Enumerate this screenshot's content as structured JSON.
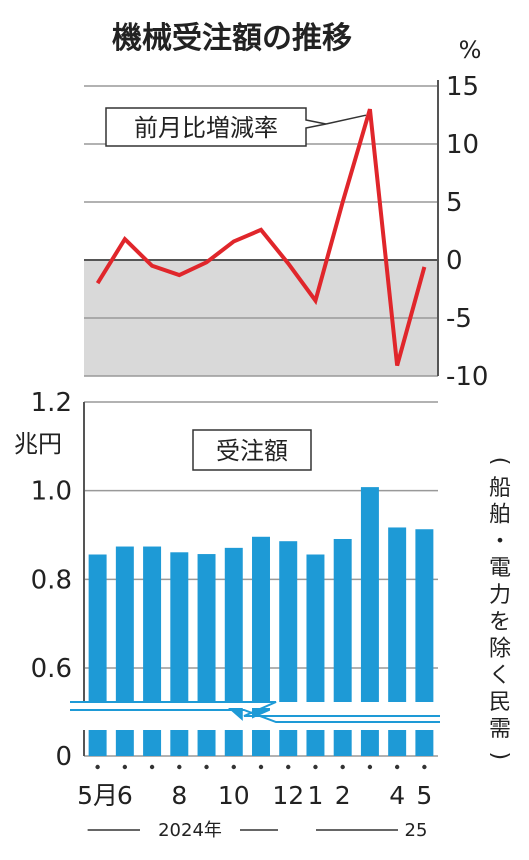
{
  "title": "機械受注額の推移",
  "chart_data": [
    {
      "type": "line",
      "name": "前月比増減率",
      "unit": "%",
      "y_ticks": [
        "15",
        "10",
        "5",
        "0",
        "-5",
        "-10"
      ],
      "ylim": [
        -10,
        15
      ],
      "x": [
        "2024-05",
        "2024-06",
        "2024-07",
        "2024-08",
        "2024-09",
        "2024-10",
        "2024-11",
        "2024-12",
        "2025-01",
        "2025-02",
        "2025-03",
        "2025-04",
        "2025-05"
      ],
      "values": [
        -2.0,
        1.8,
        -0.5,
        -1.3,
        -0.2,
        1.6,
        2.6,
        -0.3,
        -3.5,
        5.0,
        13.0,
        -9.1,
        -0.6
      ],
      "color": "#e0262b",
      "negative_band_color": "#d9d9d9",
      "grid": true
    },
    {
      "type": "bar",
      "name": "受注額",
      "unit": "兆円",
      "y_ticks": [
        "1.2",
        "1.0",
        "0.8",
        "0.6",
        "0"
      ],
      "ylim": [
        0,
        1.2
      ],
      "axis_break": true,
      "categories": [
        "2024-05",
        "2024-06",
        "2024-07",
        "2024-08",
        "2024-09",
        "2024-10",
        "2024-11",
        "2024-12",
        "2025-01",
        "2025-02",
        "2025-03",
        "2025-04",
        "2025-05"
      ],
      "values": [
        0.856,
        0.874,
        0.874,
        0.861,
        0.857,
        0.871,
        0.896,
        0.886,
        0.856,
        0.891,
        1.008,
        0.917,
        0.913
      ],
      "color": "#1e9ad6",
      "grid": true,
      "note": "(船舶・電力を除く民需)"
    }
  ],
  "x_labels": [
    "5月",
    "6",
    "",
    "8",
    "",
    "10",
    "",
    "12",
    "1",
    "2",
    "",
    "4",
    "5"
  ],
  "year_labels": [
    "2024年",
    "25"
  ]
}
